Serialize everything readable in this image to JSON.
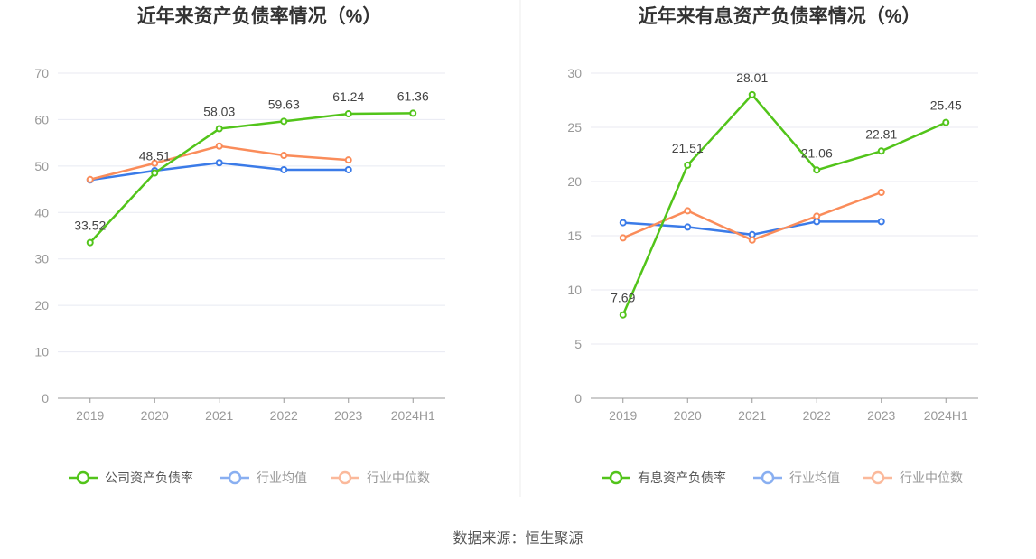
{
  "source": "数据来源：恒生聚源",
  "colors": {
    "company": "#52c41a",
    "avg": "#3b7be8",
    "median": "#fa8c5a"
  },
  "chart_data": [
    {
      "type": "line",
      "title": "近年来资产负债率情况（%）",
      "categories": [
        "2019",
        "2020",
        "2021",
        "2022",
        "2023",
        "2024H1"
      ],
      "ylim": [
        0,
        70
      ],
      "yticks": [
        0,
        10,
        20,
        30,
        40,
        50,
        60,
        70
      ],
      "grid": true,
      "legend": "bottom",
      "series": [
        {
          "name": "公司资产负债率",
          "key": "company",
          "values": [
            33.52,
            48.51,
            58.03,
            59.63,
            61.24,
            61.36
          ],
          "labels": [
            "33.52",
            "48.51",
            "58.03",
            "59.63",
            "61.24",
            "61.36"
          ]
        },
        {
          "name": "行业均值",
          "key": "avg",
          "values": [
            47.0,
            49.0,
            50.7,
            49.2,
            49.2,
            null
          ]
        },
        {
          "name": "行业中位数",
          "key": "median",
          "values": [
            47.1,
            50.6,
            54.3,
            52.3,
            51.3,
            null
          ]
        }
      ]
    },
    {
      "type": "line",
      "title": "近年来有息资产负债率情况（%）",
      "categories": [
        "2019",
        "2020",
        "2021",
        "2022",
        "2023",
        "2024H1"
      ],
      "ylim": [
        0,
        30
      ],
      "yticks": [
        0,
        5,
        10,
        15,
        20,
        25,
        30
      ],
      "grid": true,
      "legend": "bottom",
      "series": [
        {
          "name": "有息资产负债率",
          "key": "company",
          "values": [
            7.69,
            21.51,
            28.01,
            21.06,
            22.81,
            25.45
          ],
          "labels": [
            "7.69",
            "21.51",
            "28.01",
            "21.06",
            "22.81",
            "25.45"
          ]
        },
        {
          "name": "行业均值",
          "key": "avg",
          "values": [
            16.2,
            15.8,
            15.1,
            16.3,
            16.3,
            null
          ]
        },
        {
          "name": "行业中位数",
          "key": "median",
          "values": [
            14.8,
            17.3,
            14.6,
            16.8,
            19.0,
            null
          ]
        }
      ]
    }
  ]
}
